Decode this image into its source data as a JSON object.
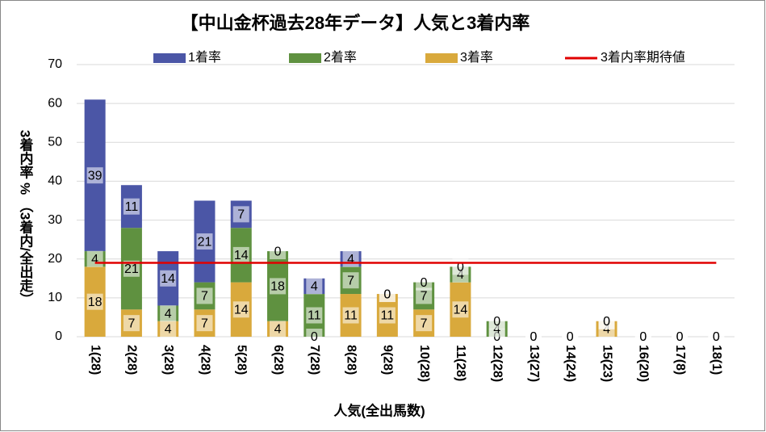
{
  "chart_data": {
    "type": "bar",
    "stacked": true,
    "title": "【中山金杯過去28年データ】人気と3着内率",
    "x_label": "人気(全出馬数)",
    "y_label": "3着内率 % （3着内/全出走）",
    "categories": [
      "1(28)",
      "2(28)",
      "3(28)",
      "4(28)",
      "5(28)",
      "6(28)",
      "7(28)",
      "8(28)",
      "9(28)",
      "10(28)",
      "11(28)",
      "12(28)",
      "13(27)",
      "14(24)",
      "15(23)",
      "16(20)",
      "17(8)",
      "18(1)"
    ],
    "series": [
      {
        "name": "1着率",
        "color": "#4b56a6",
        "values": [
          39,
          11,
          14,
          21,
          7,
          0,
          4,
          4,
          0,
          0,
          0,
          0,
          0,
          0,
          0,
          0,
          0,
          0
        ]
      },
      {
        "name": "2着率",
        "color": "#5f9140",
        "values": [
          4,
          21,
          4,
          7,
          14,
          18,
          11,
          7,
          0,
          7,
          4,
          4,
          0,
          0,
          0,
          0,
          0,
          0
        ]
      },
      {
        "name": "3着率",
        "color": "#d9a93c",
        "values": [
          18,
          7,
          4,
          7,
          14,
          4,
          0,
          11,
          11,
          7,
          14,
          0,
          0,
          0,
          4,
          0,
          0,
          0
        ]
      },
      {
        "name": "3着内率期待値",
        "type": "line",
        "color": "#e00000",
        "values": [
          19,
          19,
          19,
          19,
          19,
          19,
          19,
          19,
          19,
          19,
          19,
          19,
          19,
          19,
          19,
          19,
          19,
          19
        ]
      }
    ],
    "ylim": [
      0,
      70
    ],
    "yticks": [
      0,
      10,
      20,
      30,
      40,
      50,
      60,
      70
    ],
    "grid": true
  }
}
